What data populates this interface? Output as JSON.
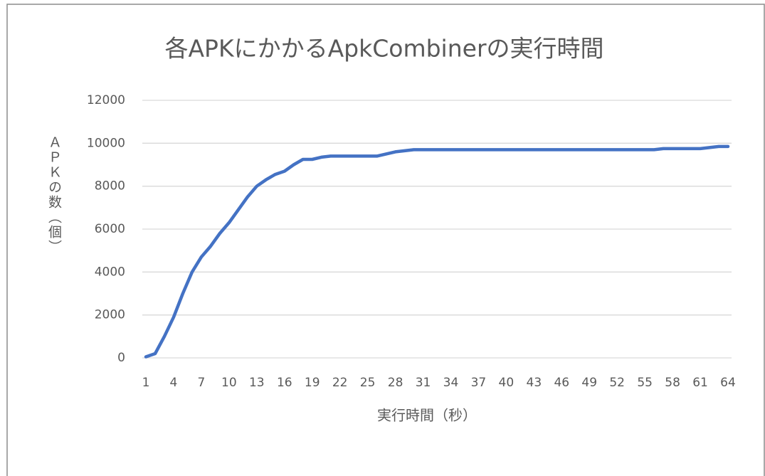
{
  "chart_data": {
    "type": "line",
    "title": "各APKにかかるApkCombinerの実行時間",
    "x_label": "実行時間（秒）",
    "y_label": "ＡＰＫの数（個）",
    "categories": [
      "1",
      null,
      null,
      "4",
      null,
      null,
      "7",
      null,
      null,
      "10",
      null,
      null,
      "13",
      null,
      null,
      "16",
      null,
      null,
      "19",
      null,
      null,
      "22",
      null,
      null,
      "25",
      null,
      null,
      "28",
      null,
      null,
      "31",
      null,
      null,
      "34",
      null,
      null,
      "37",
      null,
      null,
      "40",
      null,
      null,
      "43",
      null,
      null,
      "46",
      null,
      null,
      "49",
      null,
      null,
      "52",
      null,
      null,
      "55",
      null,
      null,
      "58",
      null,
      null,
      "61",
      null,
      null,
      "64"
    ],
    "series": [
      {
        "color": "#4472c4",
        "values": [
          50,
          200,
          1000,
          1900,
          3000,
          4000,
          4700,
          5200,
          5800,
          6300,
          6900,
          7500,
          8000,
          8300,
          8550,
          8700,
          9000,
          9250,
          9250,
          9350,
          9400,
          9400,
          9400,
          9400,
          9400,
          9400,
          9500,
          9600,
          9650,
          9700,
          9700,
          9700,
          9700,
          9700,
          9700,
          9700,
          9700,
          9700,
          9700,
          9700,
          9700,
          9700,
          9700,
          9700,
          9700,
          9700,
          9700,
          9700,
          9700,
          9700,
          9700,
          9700,
          9700,
          9700,
          9700,
          9700,
          9750,
          9750,
          9750,
          9750,
          9750,
          9800,
          9850,
          9850
        ]
      }
    ],
    "ylim": [
      0,
      12000
    ],
    "yticks": [
      0,
      2000,
      4000,
      6000,
      8000,
      10000,
      12000
    ],
    "grid": true
  }
}
